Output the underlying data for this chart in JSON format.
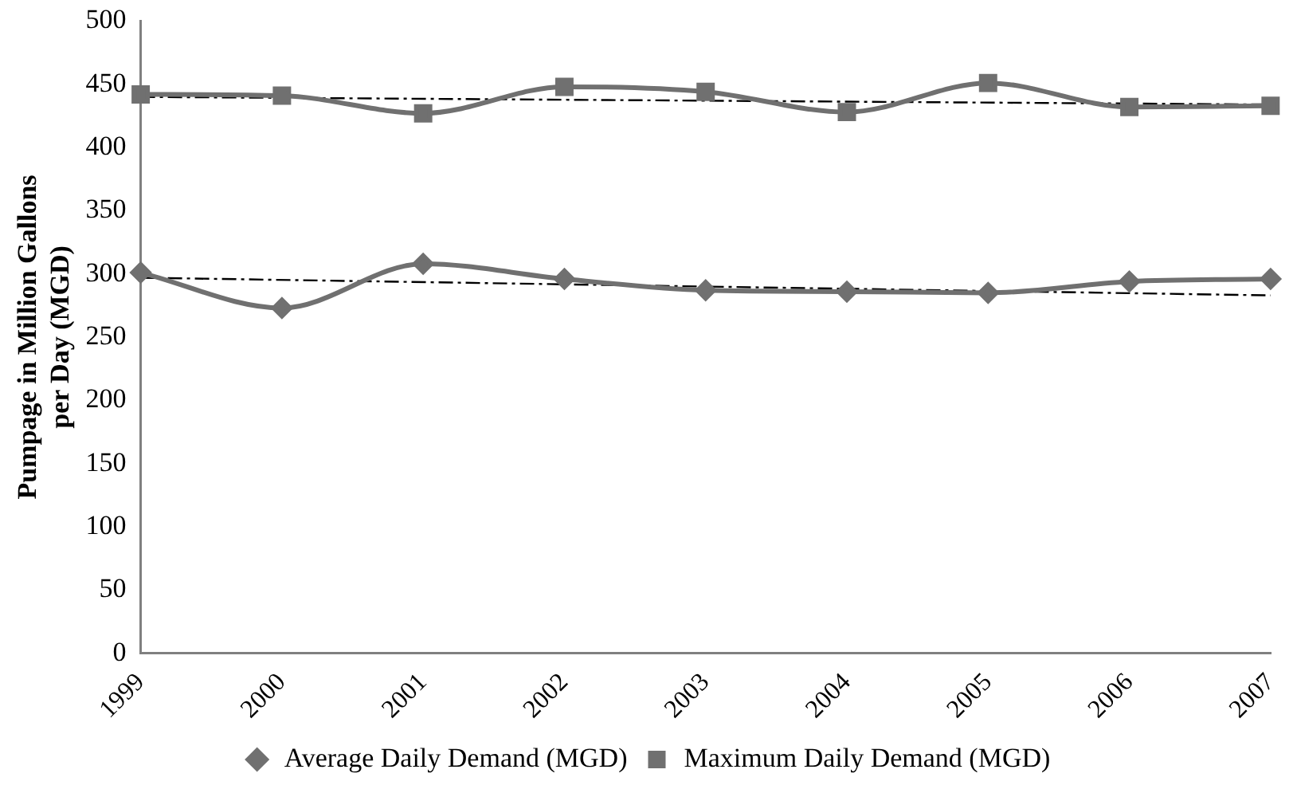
{
  "chart_data": {
    "type": "line",
    "ylabel": "Pumpage in Million Gallons per Day (MGD)",
    "categories": [
      "1999",
      "2000",
      "2001",
      "2002",
      "2003",
      "2004",
      "2005",
      "2006",
      "2007"
    ],
    "series": [
      {
        "name": "Average Daily Demand (MGD)",
        "color": "#707070",
        "marker": "diamond",
        "values": [
          301,
          273,
          308,
          296,
          287,
          286,
          285,
          294,
          296
        ]
      },
      {
        "name": "Maximum Daily Demand (MGD)",
        "color": "#707070",
        "marker": "square",
        "values": [
          442,
          441,
          427,
          448,
          444,
          428,
          451,
          432,
          433
        ]
      },
      {
        "color": "#000000",
        "marker": "none",
        "line_style": "dashed",
        "values": [
          297,
          null,
          null,
          null,
          null,
          null,
          null,
          null,
          283
        ]
      },
      {
        "color": "#000000",
        "marker": "none",
        "line_style": "dashed",
        "values": [
          440,
          null,
          null,
          null,
          null,
          null,
          null,
          null,
          434
        ]
      }
    ],
    "ylim": [
      0,
      500
    ],
    "yticks": [
      0,
      50,
      100,
      150,
      200,
      250,
      300,
      350,
      400,
      450,
      500
    ],
    "grid": false,
    "legend": "bottom"
  }
}
